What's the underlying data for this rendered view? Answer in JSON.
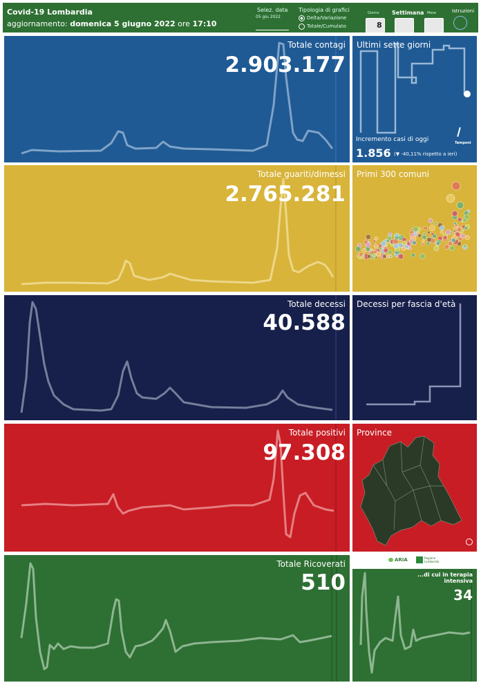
{
  "header": {
    "title": "Covid-19 Lombardia",
    "update_prefix": "aggiornamento:",
    "update_date": "domenica 5 giugno 2022",
    "update_mid": "ore",
    "update_time": "17:10",
    "date_select_label": "Selez. data",
    "date_select_value": "05 giu 2022",
    "chart_type_label": "Tipologia di grafici",
    "chart_type_options": [
      "Delta/Variazione",
      "Totale/Cumulato"
    ],
    "period_buttons": [
      "Giorno",
      "Settimana",
      "Mese"
    ],
    "day_number": "8",
    "instructions_label": "Istruzioni"
  },
  "panels": {
    "contagi": {
      "title": "Totale contagi",
      "value": "2.903.177"
    },
    "guariti": {
      "title": "Totale guariti/dimessi",
      "value": "2.765.281"
    },
    "decessi": {
      "title": "Totale decessi",
      "value": "40.588"
    },
    "positivi": {
      "title": "Totale positivi",
      "value": "97.308"
    },
    "ricoverati": {
      "title": "Totale Ricoverati",
      "value": "510"
    },
    "terapia": {
      "title": "...di cui in terapia intensiva",
      "value": "34"
    }
  },
  "side": {
    "seven_days_title": "Ultimi sette giorni",
    "increment_label": "Incremento casi di oggi",
    "increment_value": "1.856",
    "increment_change": "(▼ -40,11% rispetto a ieri)",
    "tamponi_label": "Tamponi",
    "comuni_title": "Primi 300 comuni",
    "age_title": "Decessi per fascia d'età",
    "provinces_title": "Province"
  },
  "logos": {
    "aria": "ARIA",
    "regione": "Regione Lombardia"
  },
  "colors": {
    "blue": "#1f5a94",
    "yellow": "#d8b43a",
    "navy": "#16204a",
    "red": "#c81d25",
    "green": "#2e7033"
  }
}
